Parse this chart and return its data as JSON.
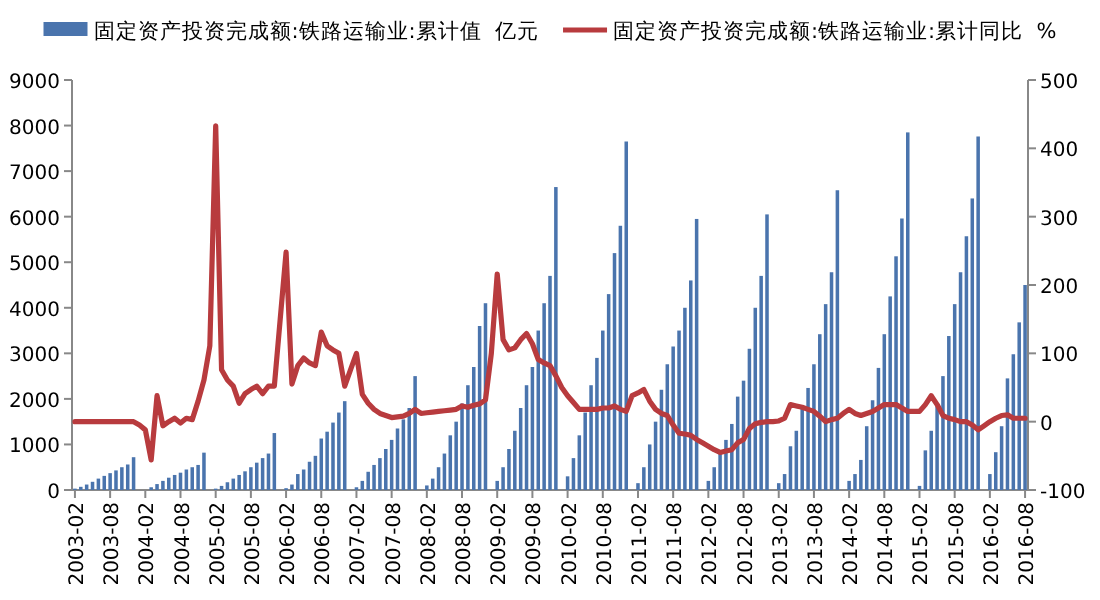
{
  "chart_data": {
    "type": "bar",
    "legend": "top",
    "categories": [
      "2003-02",
      null,
      null,
      null,
      null,
      null,
      "2003-08",
      null,
      null,
      null,
      null,
      null,
      "2004-02",
      null,
      null,
      null,
      null,
      null,
      "2004-08",
      null,
      null,
      null,
      null,
      null,
      "2005-02",
      null,
      null,
      null,
      null,
      null,
      "2005-08",
      null,
      null,
      null,
      null,
      null,
      "2006-02",
      null,
      null,
      null,
      null,
      null,
      "2006-08",
      null,
      null,
      null,
      null,
      null,
      "2007-02",
      null,
      null,
      null,
      null,
      null,
      "2007-08",
      null,
      null,
      null,
      null,
      null,
      "2008-02",
      null,
      null,
      null,
      null,
      null,
      "2008-08",
      null,
      null,
      null,
      null,
      null,
      "2009-02",
      null,
      null,
      null,
      null,
      null,
      "2009-08",
      null,
      null,
      null,
      null,
      null,
      "2010-02",
      null,
      null,
      null,
      null,
      null,
      "2010-08",
      null,
      null,
      null,
      null,
      null,
      "2011-02",
      null,
      null,
      null,
      null,
      null,
      "2011-08",
      null,
      null,
      null,
      null,
      null,
      "2012-02",
      null,
      null,
      null,
      null,
      null,
      "2012-08",
      null,
      null,
      null,
      null,
      null,
      "2013-02",
      null,
      null,
      null,
      null,
      null,
      "2013-08",
      null,
      null,
      null,
      null,
      null,
      "2014-02",
      null,
      null,
      null,
      null,
      null,
      "2014-08",
      null,
      null,
      null,
      null,
      null,
      "2015-02",
      null,
      null,
      null,
      null,
      null,
      "2015-08",
      null,
      null,
      null,
      null,
      null,
      "2016-02",
      null,
      null,
      null,
      null,
      null,
      "2016-08"
    ],
    "ylim": [
      0,
      9000
    ],
    "yticks": [
      0,
      1000,
      2000,
      3000,
      4000,
      5000,
      6000,
      7000,
      8000,
      9000
    ],
    "y2lim": [
      -100,
      500
    ],
    "y2ticks": [
      -100,
      0,
      100,
      200,
      300,
      400,
      500
    ],
    "series": [
      {
        "name": "固定资产投资完成额:铁路运输业:累计值  亿元",
        "color": "#4a74ad",
        "values": [
          30,
          70,
          120,
          180,
          250,
          310,
          370,
          430,
          500,
          560,
          720,
          null,
          null,
          60,
          130,
          200,
          270,
          330,
          380,
          450,
          500,
          550,
          820,
          null,
          30,
          90,
          170,
          250,
          330,
          410,
          500,
          600,
          700,
          800,
          1250,
          null,
          40,
          120,
          350,
          450,
          620,
          750,
          1130,
          1280,
          1480,
          1700,
          1950,
          null,
          60,
          200,
          400,
          550,
          700,
          900,
          1100,
          1350,
          1550,
          1800,
          2500,
          null,
          100,
          250,
          500,
          800,
          1200,
          1500,
          1900,
          2300,
          2700,
          3600,
          4100,
          null,
          200,
          500,
          900,
          1300,
          1800,
          2300,
          2700,
          3500,
          4100,
          4700,
          6650,
          null,
          300,
          700,
          1200,
          1700,
          2300,
          2900,
          3500,
          4300,
          5200,
          5800,
          7650,
          null,
          150,
          500,
          1000,
          1500,
          2200,
          2760,
          3150,
          3500,
          4000,
          4600,
          5950,
          null,
          200,
          500,
          800,
          1100,
          1450,
          2050,
          2400,
          3100,
          4000,
          4700,
          6050,
          null,
          150,
          350,
          960,
          1300,
          1800,
          2240,
          2760,
          3420,
          4080,
          4780,
          6580,
          null,
          200,
          350,
          660,
          1400,
          1970,
          2680,
          3420,
          4250,
          5130,
          5960,
          7850,
          null,
          90,
          870,
          1300,
          1840,
          2500,
          3380,
          4080,
          4780,
          5570,
          6400,
          7760,
          null,
          350,
          830,
          1400,
          2450,
          2980,
          3680,
          4500
        ]
      },
      {
        "name": "固定资产投资完成额:铁路运输业:累计同比  %",
        "type": "line",
        "axis": "y2",
        "color": "#b83b3e",
        "values": [
          0,
          0,
          0,
          0,
          0,
          0,
          0,
          0,
          0,
          0,
          0,
          -5,
          -12,
          -56,
          38,
          -6,
          0,
          5,
          -2,
          5,
          3,
          30,
          61,
          111,
          433,
          76,
          61,
          52,
          27,
          41,
          47,
          52,
          41,
          52,
          52,
          150,
          248,
          55,
          82,
          93,
          86,
          82,
          131,
          111,
          105,
          100,
          52,
          76,
          100,
          40,
          27,
          18,
          12,
          9,
          6,
          7,
          8,
          12,
          18,
          12,
          13,
          14,
          15,
          16,
          17,
          18,
          23,
          21,
          24,
          26,
          32,
          100,
          216,
          120,
          105,
          108,
          120,
          129,
          114,
          91,
          86,
          82,
          67,
          50,
          38,
          28,
          18,
          18,
          18,
          18,
          20,
          20,
          23,
          18,
          15,
          38,
          42,
          47,
          30,
          18,
          12,
          9,
          -5,
          -17,
          -18,
          -20,
          -26,
          -31,
          -36,
          -41,
          -45,
          -43,
          -41,
          -31,
          -26,
          -10,
          -3,
          -1,
          0,
          0,
          1,
          5,
          25,
          23,
          21,
          18,
          15,
          8,
          0,
          3,
          5,
          12,
          18,
          12,
          9,
          12,
          15,
          20,
          25,
          25,
          25,
          20,
          15,
          15,
          15,
          25,
          38,
          25,
          9,
          5,
          3,
          0,
          0,
          -5,
          -12,
          -6,
          0,
          5,
          9,
          10,
          5,
          5,
          5
        ]
      }
    ]
  }
}
